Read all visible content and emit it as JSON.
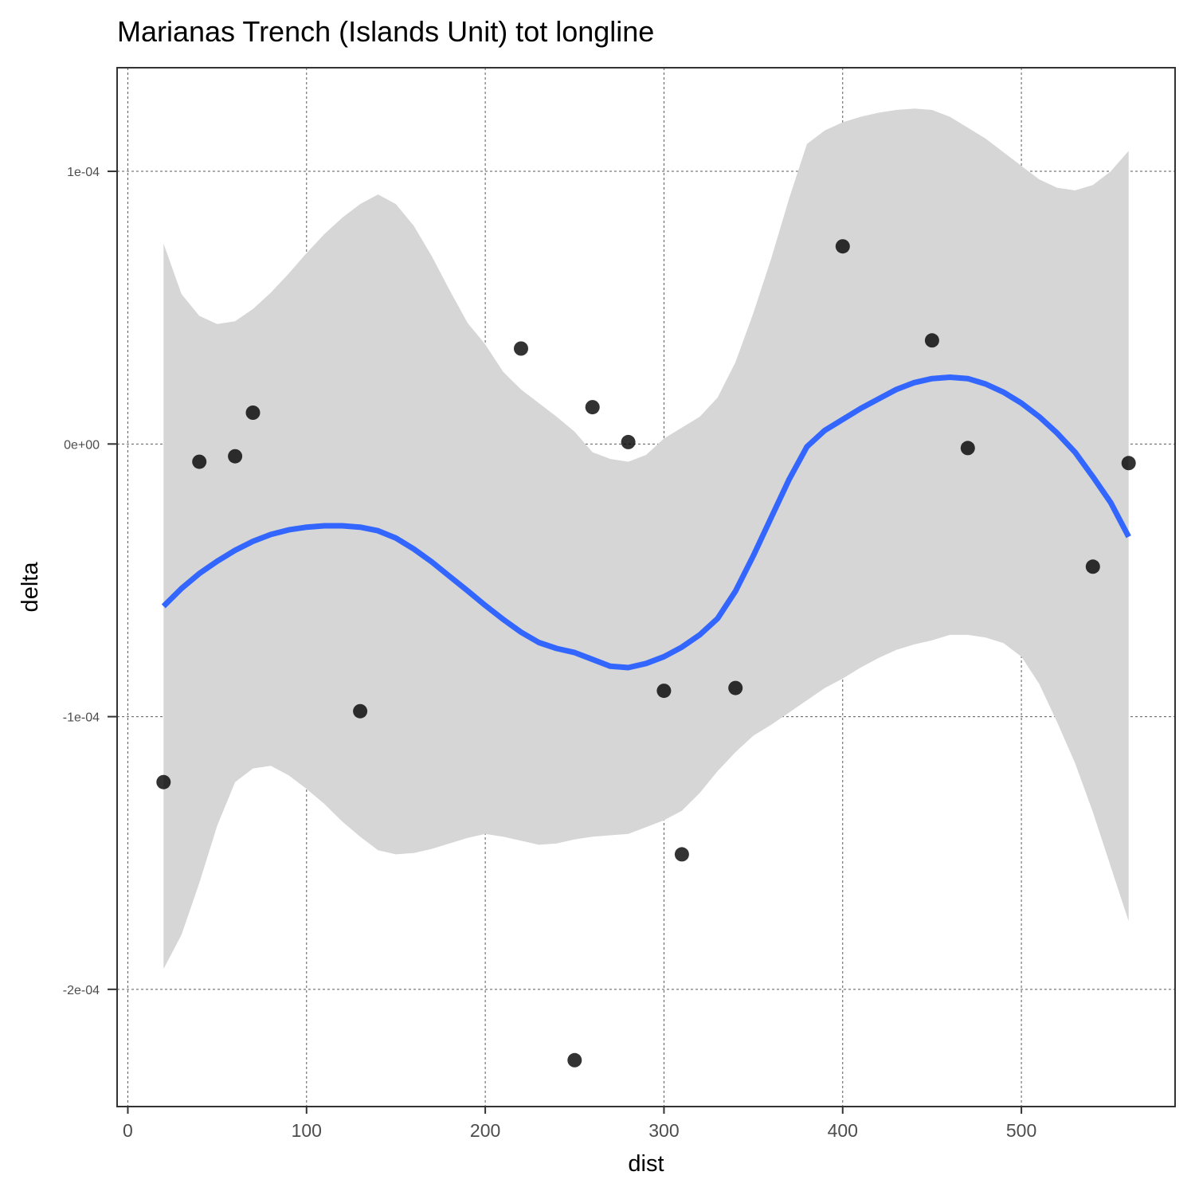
{
  "chart_data": {
    "type": "scatter",
    "title": "Marianas Trench (Islands Unit) tot longline",
    "xlabel": "dist",
    "ylabel": "delta",
    "xlim": [
      -6,
      586
    ],
    "ylim": [
      -0.000243,
      0.000138
    ],
    "x_ticks": [
      0,
      100,
      200,
      300,
      400,
      500
    ],
    "x_tick_labels": [
      "0",
      "100",
      "200",
      "300",
      "400",
      "500"
    ],
    "y_ticks": [
      -0.0002,
      -0.0001,
      0,
      0.0001
    ],
    "y_tick_labels": [
      "-2e-04",
      "-1e-04",
      "0e+00",
      "1e-04"
    ],
    "grid": true,
    "points": {
      "x": [
        20,
        40,
        60,
        70,
        130,
        220,
        250,
        260,
        280,
        300,
        310,
        340,
        400,
        450,
        470,
        540,
        560
      ],
      "y": [
        -0.000124,
        -6.5e-06,
        -4.5e-06,
        1.15e-05,
        -9.8e-05,
        3.5e-05,
        -0.000226,
        1.35e-05,
        7e-07,
        -9.05e-05,
        -0.0001505,
        -8.95e-05,
        7.25e-05,
        3.8e-05,
        -1.5e-06,
        -4.5e-05,
        -7e-06
      ]
    },
    "smooth": {
      "color": "#3366ff",
      "x": [
        20,
        30,
        40,
        50,
        60,
        70,
        80,
        90,
        100,
        110,
        120,
        130,
        140,
        150,
        160,
        170,
        180,
        190,
        200,
        210,
        220,
        230,
        240,
        250,
        260,
        270,
        280,
        290,
        300,
        310,
        320,
        330,
        340,
        350,
        360,
        370,
        380,
        390,
        400,
        410,
        420,
        430,
        440,
        450,
        460,
        470,
        480,
        490,
        500,
        510,
        520,
        530,
        540,
        550,
        560
      ],
      "y": [
        -5.95e-05,
        -5.3e-05,
        -4.75e-05,
        -4.3e-05,
        -3.9e-05,
        -3.57e-05,
        -3.32e-05,
        -3.15e-05,
        -3.05e-05,
        -3e-05,
        -3e-05,
        -3.05e-05,
        -3.18e-05,
        -3.45e-05,
        -3.85e-05,
        -4.32e-05,
        -4.85e-05,
        -5.38e-05,
        -5.92e-05,
        -6.43e-05,
        -6.9e-05,
        -7.28e-05,
        -7.5e-05,
        -7.65e-05,
        -7.9e-05,
        -8.15e-05,
        -8.2e-05,
        -8.05e-05,
        -7.8e-05,
        -7.45e-05,
        -7e-05,
        -6.4e-05,
        -5.4e-05,
        -4.1e-05,
        -2.7e-05,
        -1.3e-05,
        -1e-06,
        5e-06,
        9e-06,
        1.3e-05,
        1.65e-05,
        2e-05,
        2.25e-05,
        2.4e-05,
        2.45e-05,
        2.4e-05,
        2.2e-05,
        1.9e-05,
        1.5e-05,
        1e-05,
        4e-06,
        -3e-06,
        -1.2e-05,
        -2.15e-05,
        -3.4e-05
      ]
    },
    "ribbon": {
      "color": "#d6d6d6",
      "x": [
        20,
        30,
        40,
        50,
        60,
        70,
        80,
        90,
        100,
        110,
        120,
        130,
        140,
        150,
        160,
        170,
        180,
        190,
        200,
        210,
        220,
        230,
        240,
        250,
        260,
        270,
        280,
        290,
        300,
        310,
        320,
        330,
        340,
        350,
        360,
        370,
        380,
        390,
        400,
        410,
        420,
        430,
        440,
        450,
        460,
        470,
        480,
        490,
        500,
        510,
        520,
        530,
        540,
        550,
        560
      ],
      "upper": [
        7.35e-05,
        5.5e-05,
        4.7e-05,
        4.4e-05,
        4.5e-05,
        4.95e-05,
        5.55e-05,
        6.25e-05,
        7e-05,
        7.7e-05,
        8.3e-05,
        8.8e-05,
        9.15e-05,
        8.8e-05,
        8e-05,
        6.9e-05,
        5.65e-05,
        4.45e-05,
        3.65e-05,
        2.65e-05,
        2e-05,
        1.5e-05,
        1e-05,
        4.5e-06,
        -3e-06,
        -5.5e-06,
        -6.5e-06,
        -4e-06,
        2e-06,
        6e-06,
        1e-05,
        1.7e-05,
        3e-05,
        4.8e-05,
        6.8e-05,
        9e-05,
        0.00011,
        0.000115,
        0.000118,
        0.00012,
        0.0001215,
        0.0001225,
        0.000123,
        0.0001225,
        0.00012,
        0.000116,
        0.000112,
        0.000107,
        0.000102,
        9.7e-05,
        9.4e-05,
        9.3e-05,
        9.5e-05,
        0.0001,
        0.0001075
      ],
      "lower": [
        -0.0001925,
        -0.00018,
        -0.000161,
        -0.00014,
        -0.000124,
        -0.000119,
        -0.000118,
        -0.0001215,
        -0.0001265,
        -0.000132,
        -0.0001385,
        -0.000144,
        -0.000149,
        -0.0001505,
        -0.00015,
        -0.0001485,
        -0.0001465,
        -0.0001445,
        -0.000143,
        -0.000144,
        -0.0001455,
        -0.000147,
        -0.0001465,
        -0.000145,
        -0.000144,
        -0.0001435,
        -0.000143,
        -0.0001405,
        -0.000138,
        -0.0001345,
        -0.000128,
        -0.00012,
        -0.000113,
        -0.000107,
        -0.000103,
        -9.85e-05,
        -9.4e-05,
        -8.95e-05,
        -8.6e-05,
        -8.2e-05,
        -7.85e-05,
        -7.55e-05,
        -7.35e-05,
        -7.2e-05,
        -7e-05,
        -7e-05,
        -7.1e-05,
        -7.3e-05,
        -7.8e-05,
        -8.8e-05,
        -0.000102,
        -0.000117,
        -0.000135,
        -0.000155,
        -0.000175
      ]
    }
  }
}
